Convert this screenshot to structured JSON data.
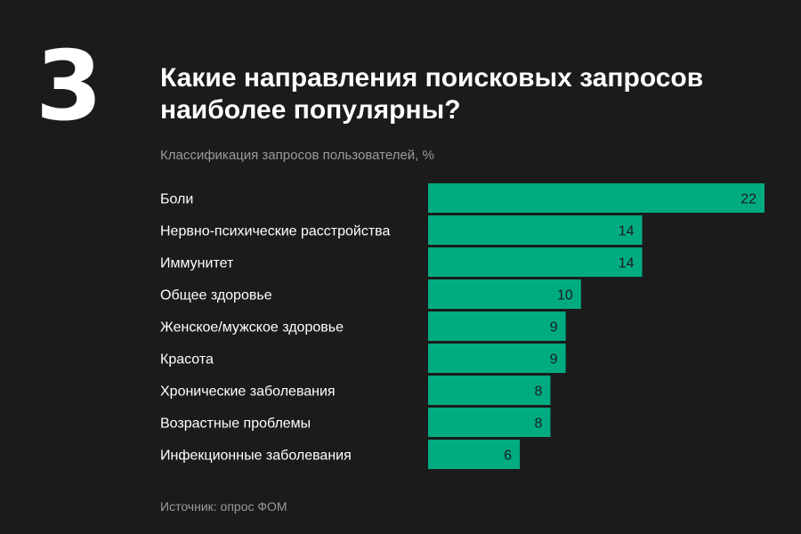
{
  "big_number": "3",
  "title_line1": "Какие направления поисковых запросов",
  "title_line2": "наиболее популярны?",
  "source": "Источник: опрос ФОМ",
  "colors": {
    "bar": "#00ab82",
    "background": "#1b1b1b"
  },
  "chart_data": {
    "type": "bar",
    "orientation": "horizontal",
    "subtitle": "Классификация запросов пользователей, %",
    "categories": [
      "Боли",
      "Нервно-психические расстройства",
      "Иммунитет",
      "Общее здоровье",
      "Женское/мужское здоровье",
      "Красота",
      "Хронические заболевания",
      "Возрастные проблемы",
      "Инфекционные заболевания"
    ],
    "values": [
      22,
      14,
      14,
      10,
      9,
      9,
      8,
      8,
      6
    ],
    "xlim": [
      0,
      22
    ],
    "grid": false,
    "legend": false
  }
}
